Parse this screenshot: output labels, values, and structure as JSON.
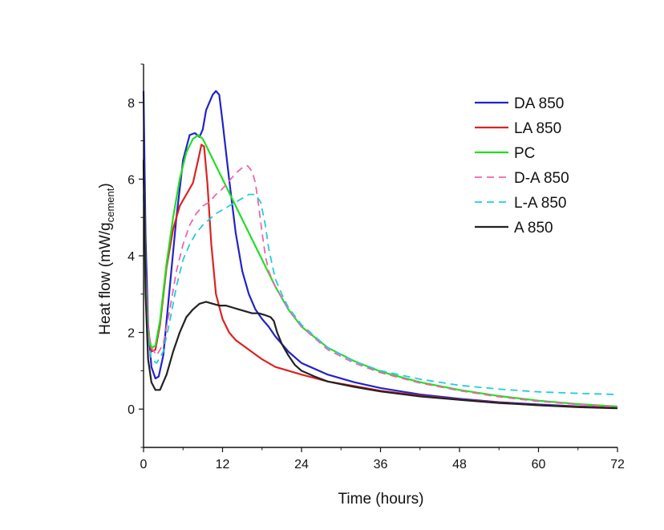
{
  "chart_data": {
    "type": "line",
    "xlabel": "Time (hours)",
    "ylabel_main": "Heat flow (mW/g",
    "ylabel_sub": "cement",
    "ylabel_close": ")",
    "xlim": [
      0,
      72
    ],
    "ylim": [
      -1,
      9
    ],
    "xticks": [
      0,
      12,
      24,
      36,
      48,
      60,
      72
    ],
    "yticks": [
      0,
      2,
      4,
      6,
      8
    ],
    "grid": false,
    "legend_position": "top-right",
    "series": [
      {
        "name": "DA 850",
        "color": "#2222cc",
        "dash": "solid",
        "points": [
          [
            0,
            8.3
          ],
          [
            0.3,
            4.5
          ],
          [
            0.7,
            2.2
          ],
          [
            1.2,
            1.1
          ],
          [
            1.8,
            0.8
          ],
          [
            2.3,
            0.85
          ],
          [
            3,
            1.4
          ],
          [
            4,
            3.2
          ],
          [
            5,
            5.0
          ],
          [
            6,
            6.5
          ],
          [
            7,
            7.15
          ],
          [
            7.8,
            7.2
          ],
          [
            8.5,
            7.1
          ],
          [
            9,
            7.3
          ],
          [
            9.5,
            7.8
          ],
          [
            10.5,
            8.2
          ],
          [
            11,
            8.3
          ],
          [
            11.5,
            8.2
          ],
          [
            12,
            7.5
          ],
          [
            13,
            6.0
          ],
          [
            14,
            4.6
          ],
          [
            15,
            3.6
          ],
          [
            16,
            3.0
          ],
          [
            17,
            2.6
          ],
          [
            18,
            2.35
          ],
          [
            19,
            2.15
          ],
          [
            20,
            1.9
          ],
          [
            22,
            1.5
          ],
          [
            24,
            1.2
          ],
          [
            28,
            0.9
          ],
          [
            32,
            0.7
          ],
          [
            36,
            0.55
          ],
          [
            42,
            0.38
          ],
          [
            48,
            0.27
          ],
          [
            54,
            0.18
          ],
          [
            60,
            0.12
          ],
          [
            66,
            0.07
          ],
          [
            72,
            0.03
          ]
        ]
      },
      {
        "name": "LA 850",
        "color": "#dd2222",
        "dash": "solid",
        "points": [
          [
            0,
            6.4
          ],
          [
            0.3,
            3.6
          ],
          [
            0.7,
            2.1
          ],
          [
            1.2,
            1.5
          ],
          [
            1.8,
            1.55
          ],
          [
            2.5,
            2.2
          ],
          [
            3.5,
            3.7
          ],
          [
            4.5,
            4.7
          ],
          [
            5.5,
            5.3
          ],
          [
            6.5,
            5.6
          ],
          [
            7.5,
            5.9
          ],
          [
            8.3,
            6.5
          ],
          [
            8.8,
            6.9
          ],
          [
            9.2,
            6.85
          ],
          [
            9.7,
            5.9
          ],
          [
            10.3,
            4.3
          ],
          [
            11,
            3.0
          ],
          [
            12,
            2.35
          ],
          [
            13,
            2.0
          ],
          [
            14,
            1.8
          ],
          [
            16,
            1.55
          ],
          [
            18,
            1.3
          ],
          [
            20,
            1.1
          ],
          [
            24,
            0.9
          ],
          [
            28,
            0.72
          ],
          [
            32,
            0.6
          ],
          [
            36,
            0.48
          ],
          [
            42,
            0.35
          ],
          [
            48,
            0.25
          ],
          [
            54,
            0.17
          ],
          [
            60,
            0.1
          ],
          [
            66,
            0.06
          ],
          [
            72,
            0.03
          ]
        ]
      },
      {
        "name": "PC",
        "color": "#22dd22",
        "dash": "solid",
        "points": [
          [
            0,
            6.3
          ],
          [
            0.3,
            3.5
          ],
          [
            0.7,
            2.0
          ],
          [
            1.2,
            1.6
          ],
          [
            1.8,
            1.65
          ],
          [
            2.5,
            2.3
          ],
          [
            3.5,
            3.8
          ],
          [
            4.5,
            5.0
          ],
          [
            5.5,
            6.0
          ],
          [
            6.5,
            6.7
          ],
          [
            7.5,
            7.05
          ],
          [
            8.3,
            7.15
          ],
          [
            9,
            7.05
          ],
          [
            10,
            6.7
          ],
          [
            11,
            6.35
          ],
          [
            12,
            6.0
          ],
          [
            13,
            5.65
          ],
          [
            14,
            5.3
          ],
          [
            15,
            4.95
          ],
          [
            16,
            4.6
          ],
          [
            17,
            4.25
          ],
          [
            18,
            3.9
          ],
          [
            19,
            3.55
          ],
          [
            20,
            3.2
          ],
          [
            22,
            2.6
          ],
          [
            24,
            2.15
          ],
          [
            28,
            1.6
          ],
          [
            32,
            1.25
          ],
          [
            36,
            0.98
          ],
          [
            42,
            0.7
          ],
          [
            48,
            0.5
          ],
          [
            54,
            0.34
          ],
          [
            60,
            0.22
          ],
          [
            66,
            0.13
          ],
          [
            72,
            0.07
          ]
        ]
      },
      {
        "name": "D-A 850",
        "color": "#ee66aa",
        "dash": "dashed",
        "points": [
          [
            0,
            6.0
          ],
          [
            0.3,
            3.5
          ],
          [
            0.7,
            2.1
          ],
          [
            1.2,
            1.6
          ],
          [
            2,
            1.4
          ],
          [
            3,
            1.7
          ],
          [
            4,
            2.6
          ],
          [
            5,
            3.6
          ],
          [
            6,
            4.3
          ],
          [
            7,
            4.8
          ],
          [
            8,
            5.1
          ],
          [
            9,
            5.3
          ],
          [
            10,
            5.4
          ],
          [
            11,
            5.6
          ],
          [
            12,
            5.75
          ],
          [
            13,
            5.95
          ],
          [
            14,
            6.15
          ],
          [
            15,
            6.3
          ],
          [
            15.8,
            6.35
          ],
          [
            16.5,
            6.2
          ],
          [
            17,
            5.9
          ],
          [
            17.5,
            5.3
          ],
          [
            18,
            4.6
          ],
          [
            18.5,
            4.0
          ],
          [
            19,
            3.6
          ],
          [
            20,
            3.2
          ],
          [
            21,
            2.9
          ],
          [
            22,
            2.6
          ],
          [
            24,
            2.15
          ],
          [
            28,
            1.55
          ],
          [
            32,
            1.2
          ],
          [
            36,
            0.95
          ],
          [
            42,
            0.68
          ],
          [
            48,
            0.48
          ],
          [
            54,
            0.32
          ],
          [
            60,
            0.2
          ],
          [
            66,
            0.12
          ],
          [
            72,
            0.06
          ]
        ]
      },
      {
        "name": "L-A 850",
        "color": "#22ccdd",
        "dash": "dashed",
        "points": [
          [
            0,
            5.6
          ],
          [
            0.3,
            3.2
          ],
          [
            0.7,
            1.8
          ],
          [
            1.2,
            1.3
          ],
          [
            2,
            1.2
          ],
          [
            3,
            1.5
          ],
          [
            4,
            2.3
          ],
          [
            5,
            3.2
          ],
          [
            6,
            3.9
          ],
          [
            7,
            4.3
          ],
          [
            8,
            4.6
          ],
          [
            9,
            4.8
          ],
          [
            10,
            4.95
          ],
          [
            11,
            5.1
          ],
          [
            12,
            5.2
          ],
          [
            13,
            5.3
          ],
          [
            14,
            5.4
          ],
          [
            15,
            5.5
          ],
          [
            16,
            5.6
          ],
          [
            17,
            5.6
          ],
          [
            17.8,
            5.4
          ],
          [
            18.5,
            4.8
          ],
          [
            19,
            4.2
          ],
          [
            19.5,
            3.8
          ],
          [
            20,
            3.4
          ],
          [
            21,
            3.0
          ],
          [
            22,
            2.65
          ],
          [
            24,
            2.2
          ],
          [
            28,
            1.6
          ],
          [
            32,
            1.25
          ],
          [
            36,
            1.0
          ],
          [
            42,
            0.78
          ],
          [
            48,
            0.62
          ],
          [
            54,
            0.52
          ],
          [
            60,
            0.45
          ],
          [
            66,
            0.41
          ],
          [
            72,
            0.38
          ]
        ]
      },
      {
        "name": "A 850",
        "color": "#222222",
        "dash": "solid",
        "points": [
          [
            0,
            6.5
          ],
          [
            0.3,
            3.0
          ],
          [
            0.7,
            1.3
          ],
          [
            1.2,
            0.7
          ],
          [
            1.8,
            0.5
          ],
          [
            2.5,
            0.5
          ],
          [
            3.5,
            0.9
          ],
          [
            4.5,
            1.5
          ],
          [
            5.5,
            2.0
          ],
          [
            6.5,
            2.4
          ],
          [
            7.5,
            2.6
          ],
          [
            8.5,
            2.75
          ],
          [
            9.5,
            2.8
          ],
          [
            10.5,
            2.75
          ],
          [
            11.5,
            2.7
          ],
          [
            12.5,
            2.7
          ],
          [
            13.5,
            2.65
          ],
          [
            14.5,
            2.6
          ],
          [
            15.5,
            2.55
          ],
          [
            16.5,
            2.5
          ],
          [
            17.5,
            2.5
          ],
          [
            18.5,
            2.45
          ],
          [
            19.3,
            2.4
          ],
          [
            19.8,
            2.3
          ],
          [
            20.3,
            2.0
          ],
          [
            21,
            1.7
          ],
          [
            22,
            1.4
          ],
          [
            23,
            1.15
          ],
          [
            24,
            1.0
          ],
          [
            26,
            0.85
          ],
          [
            28,
            0.72
          ],
          [
            32,
            0.58
          ],
          [
            36,
            0.46
          ],
          [
            42,
            0.33
          ],
          [
            48,
            0.24
          ],
          [
            54,
            0.16
          ],
          [
            60,
            0.1
          ],
          [
            66,
            0.05
          ],
          [
            72,
            0.02
          ]
        ]
      }
    ]
  }
}
